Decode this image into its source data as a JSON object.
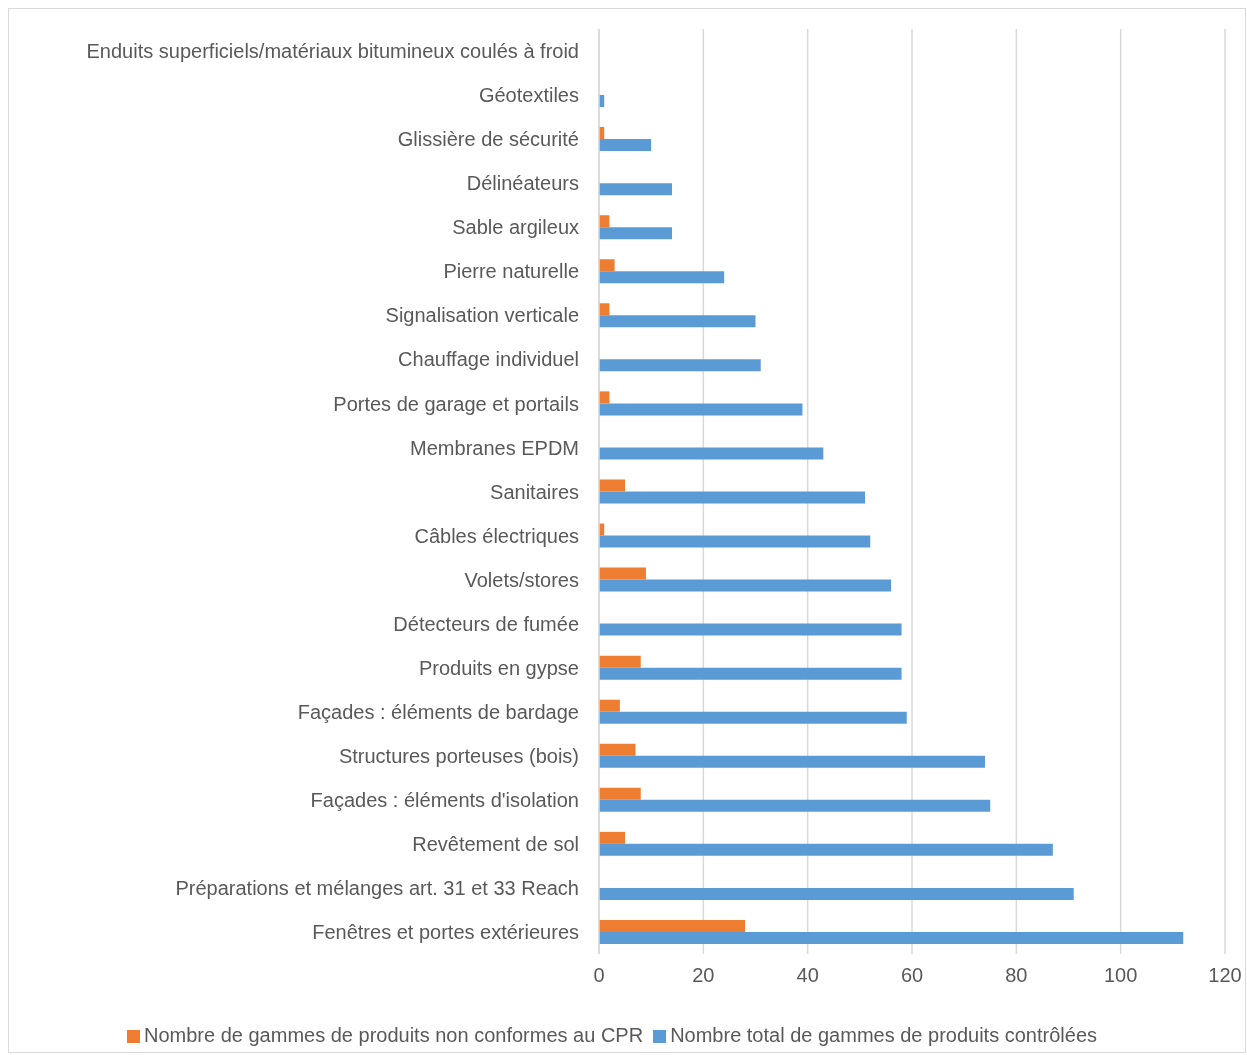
{
  "chart_data": {
    "type": "bar",
    "orientation": "horizontal",
    "categories": [
      "Enduits superficiels/matériaux bitumineux coulés à froid",
      "Géotextiles",
      "Glissière de sécurité",
      "Délinéateurs ",
      "Sable argileux",
      "Pierre naturelle",
      "Signalisation verticale",
      "Chauffage individuel",
      "Portes de garage et portails",
      "Membranes EPDM",
      "Sanitaires",
      "Câbles électriques",
      "Volets/stores",
      "Détecteurs de fumée",
      "Produits en gypse",
      "Façades : éléments de bardage",
      "Structures porteuses (bois) ",
      "Façades : éléments d'isolation",
      "Revêtement de sol",
      "Préparations et mélanges art. 31 et 33 Reach",
      "Fenêtres et portes extérieures"
    ],
    "series": [
      {
        "name": "Nombre de gammes de produits non conformes au CPR",
        "color": "#ed7d31",
        "values": [
          0,
          0,
          1,
          0,
          2,
          3,
          2,
          0,
          2,
          0,
          5,
          1,
          9,
          0,
          8,
          4,
          7,
          8,
          5,
          0,
          28
        ]
      },
      {
        "name": "Nombre total de gammes de produits contrôlées",
        "color": "#5b9bd5",
        "values": [
          0,
          1,
          10,
          14,
          14,
          24,
          30,
          31,
          39,
          43,
          51,
          52,
          56,
          58,
          58,
          59,
          74,
          75,
          87,
          91,
          112
        ]
      }
    ],
    "xlim": [
      0,
      120
    ],
    "xticks": [
      0,
      20,
      40,
      60,
      80,
      100,
      120
    ],
    "grid": "x",
    "legend": "bottom"
  }
}
